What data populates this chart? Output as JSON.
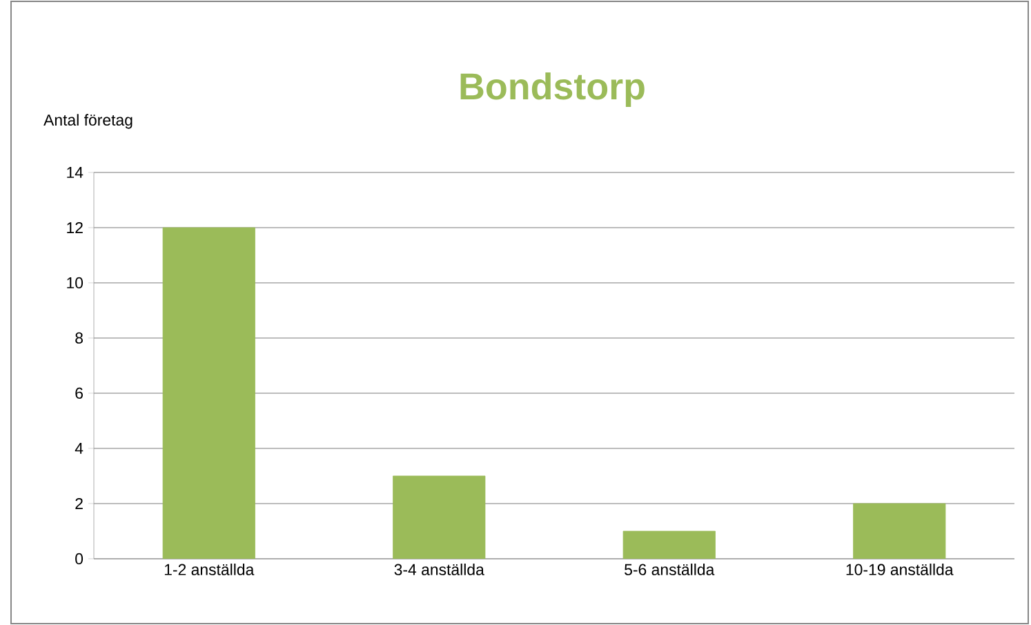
{
  "chart_data": {
    "type": "bar",
    "title": "Bondstorp",
    "ylabel": "Antal företag",
    "categories": [
      "1-2 anställda",
      "3-4 anställda",
      "5-6 anställda",
      "10-19 anställda"
    ],
    "values": [
      12,
      3,
      1,
      2
    ],
    "color": "#9bbb59",
    "ylim": [
      0,
      14
    ],
    "yticks": [
      0,
      2,
      4,
      6,
      8,
      10,
      12,
      14
    ],
    "grid": "y"
  }
}
